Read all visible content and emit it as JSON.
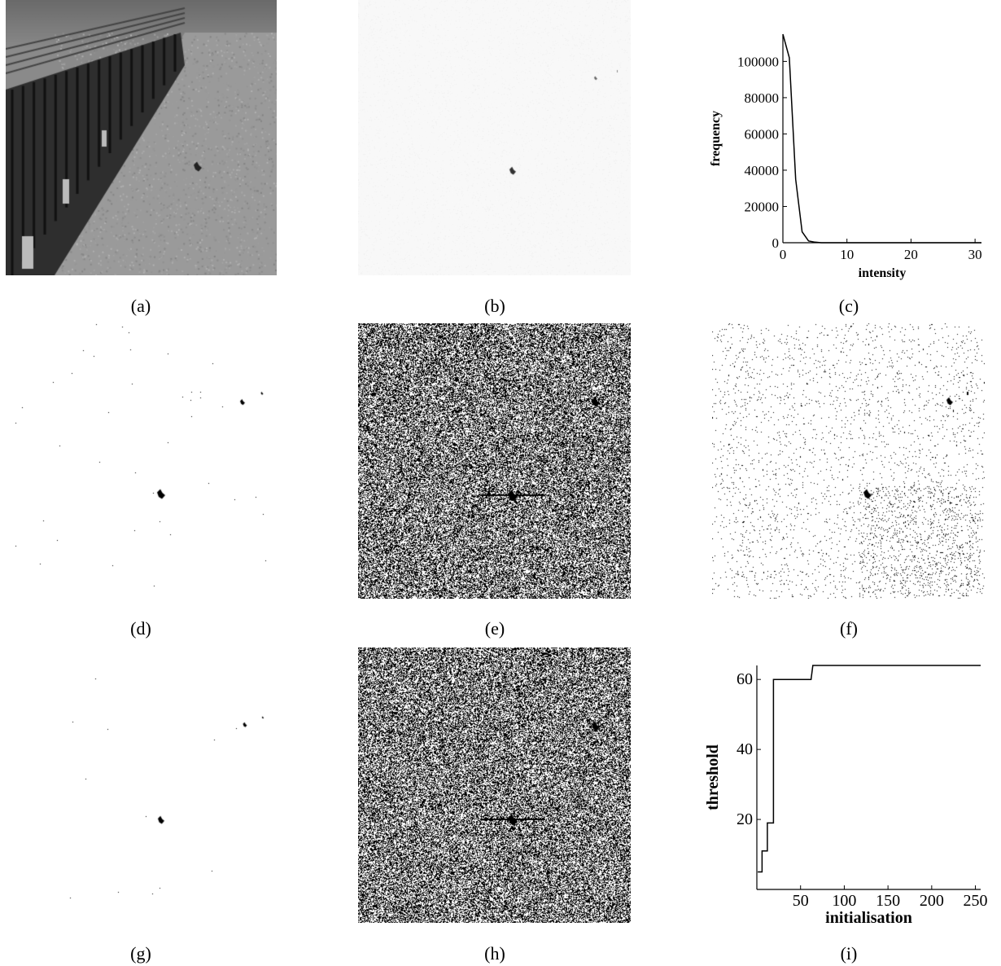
{
  "figure": {
    "captions": [
      "(a)",
      "(b)",
      "(c)",
      "(d)",
      "(e)",
      "(f)",
      "(g)",
      "(h)",
      "(i)"
    ]
  },
  "panels": {
    "a": {
      "content": "grayscale photograph of fence and road"
    },
    "b": {
      "content": "near-white difference image with small dark blobs"
    },
    "d": {
      "content": "binary image sparse black blobs"
    },
    "e": {
      "content": "dense salt and pepper noise"
    },
    "f": {
      "content": "sparse noise with blobs"
    },
    "g": {
      "content": "binary image clean blobs"
    },
    "h": {
      "content": "dense salt and pepper noise"
    }
  },
  "chart_data": [
    {
      "id": "c",
      "type": "line",
      "xlabel": "intensity",
      "ylabel": "frequency",
      "xlim": [
        0,
        31
      ],
      "ylim": [
        0,
        115000
      ],
      "x_ticks": [
        "0",
        "10",
        "20",
        "30"
      ],
      "y_ticks": [
        "0",
        "20000",
        "40000",
        "60000",
        "80000",
        "100000"
      ],
      "x": [
        0,
        1,
        2,
        3,
        4,
        5,
        6,
        10,
        20,
        31
      ],
      "y": [
        115000,
        102000,
        35000,
        6000,
        1000,
        300,
        0,
        0,
        0,
        0
      ]
    },
    {
      "id": "i",
      "type": "line",
      "xlabel": "initialisation",
      "ylabel": "threshold",
      "xlim": [
        0,
        256
      ],
      "ylim": [
        0,
        64
      ],
      "x_ticks": [
        "50",
        "100",
        "150",
        "200",
        "250"
      ],
      "y_ticks": [
        "20",
        "40",
        "60"
      ],
      "x": [
        1,
        6,
        6,
        12,
        12,
        19,
        19,
        24,
        27,
        62,
        64,
        256
      ],
      "y": [
        5,
        5,
        11,
        11,
        19,
        19,
        60,
        60,
        60,
        60,
        64,
        64
      ]
    }
  ]
}
